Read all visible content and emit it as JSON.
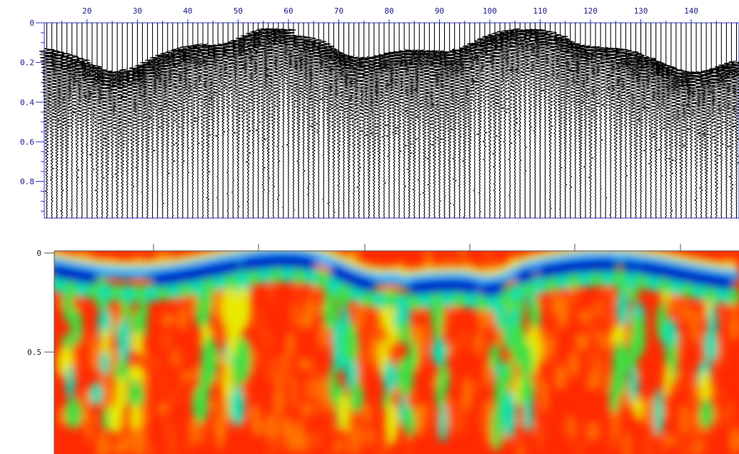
{
  "wiggle_panel": {
    "x_ticks": [
      "20",
      "30",
      "40",
      "50",
      "60",
      "70",
      "80",
      "90",
      "100",
      "110",
      "120",
      "130",
      "140"
    ],
    "y_ticks": [
      "0",
      "0.2",
      "0.4",
      "0.6",
      "0.8"
    ],
    "axis_color": "#3333cc",
    "trace_color": "#000000"
  },
  "heatmap_panel": {
    "y_ticks": [
      "0",
      "0.5"
    ],
    "colormap": [
      "#0000c8",
      "#00b4ff",
      "#00e0b0",
      "#40e040",
      "#e8e800",
      "#ff8000",
      "#ff2000"
    ]
  }
}
